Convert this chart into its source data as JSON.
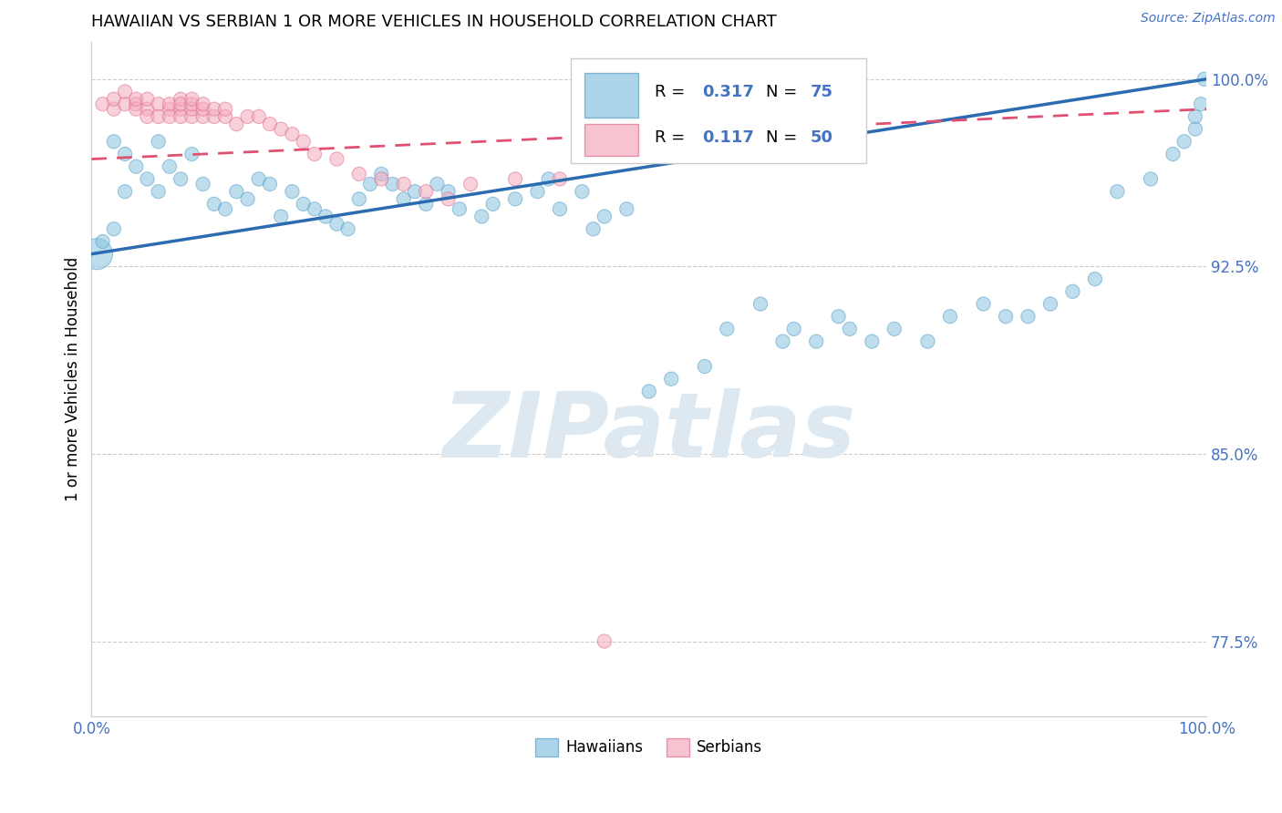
{
  "title": "HAWAIIAN VS SERBIAN 1 OR MORE VEHICLES IN HOUSEHOLD CORRELATION CHART",
  "source_text": "Source: ZipAtlas.com",
  "ylabel": "1 or more Vehicles in Household",
  "xlim": [
    0.0,
    1.0
  ],
  "ylim": [
    0.745,
    1.015
  ],
  "yticks": [
    0.775,
    0.85,
    0.925,
    1.0
  ],
  "ytick_labels": [
    "77.5%",
    "85.0%",
    "92.5%",
    "100.0%"
  ],
  "xtick_labels": [
    "0.0%",
    "100.0%"
  ],
  "blue_color": "#89c4e1",
  "blue_edge_color": "#5b9fc7",
  "pink_color": "#f4aabc",
  "pink_edge_color": "#e07090",
  "blue_line_color": "#2b6cb0",
  "pink_line_color": "#e05070",
  "watermark_text": "ZIPatlas",
  "watermark_color": "#dde8f0",
  "background_color": "#ffffff",
  "tick_color": "#4472c4",
  "hawaiians_x": [
    0.005,
    0.01,
    0.02,
    0.02,
    0.03,
    0.03,
    0.04,
    0.05,
    0.06,
    0.06,
    0.07,
    0.08,
    0.09,
    0.1,
    0.11,
    0.12,
    0.13,
    0.14,
    0.15,
    0.16,
    0.17,
    0.18,
    0.19,
    0.2,
    0.21,
    0.22,
    0.23,
    0.24,
    0.25,
    0.26,
    0.27,
    0.28,
    0.29,
    0.3,
    0.31,
    0.32,
    0.33,
    0.35,
    0.36,
    0.38,
    0.4,
    0.41,
    0.42,
    0.44,
    0.45,
    0.46,
    0.48,
    0.5,
    0.52,
    0.55,
    0.57,
    0.6,
    0.62,
    0.63,
    0.65,
    0.67,
    0.68,
    0.7,
    0.72,
    0.75,
    0.77,
    0.8,
    0.82,
    0.84,
    0.86,
    0.88,
    0.9,
    0.92,
    0.95,
    0.97,
    0.98,
    0.99,
    0.99,
    0.995,
    0.998
  ],
  "hawaiians_y": [
    0.93,
    0.935,
    0.94,
    0.975,
    0.955,
    0.97,
    0.965,
    0.96,
    0.955,
    0.975,
    0.965,
    0.96,
    0.97,
    0.958,
    0.95,
    0.948,
    0.955,
    0.952,
    0.96,
    0.958,
    0.945,
    0.955,
    0.95,
    0.948,
    0.945,
    0.942,
    0.94,
    0.952,
    0.958,
    0.962,
    0.958,
    0.952,
    0.955,
    0.95,
    0.958,
    0.955,
    0.948,
    0.945,
    0.95,
    0.952,
    0.955,
    0.96,
    0.948,
    0.955,
    0.94,
    0.945,
    0.948,
    0.875,
    0.88,
    0.885,
    0.9,
    0.91,
    0.895,
    0.9,
    0.895,
    0.905,
    0.9,
    0.895,
    0.9,
    0.895,
    0.905,
    0.91,
    0.905,
    0.905,
    0.91,
    0.915,
    0.92,
    0.955,
    0.96,
    0.97,
    0.975,
    0.98,
    0.985,
    0.99,
    1.0
  ],
  "hawaiians_large": [
    0
  ],
  "serbians_x": [
    0.01,
    0.02,
    0.02,
    0.03,
    0.03,
    0.04,
    0.04,
    0.04,
    0.05,
    0.05,
    0.05,
    0.06,
    0.06,
    0.07,
    0.07,
    0.07,
    0.08,
    0.08,
    0.08,
    0.08,
    0.09,
    0.09,
    0.09,
    0.09,
    0.1,
    0.1,
    0.1,
    0.11,
    0.11,
    0.12,
    0.12,
    0.13,
    0.14,
    0.15,
    0.16,
    0.17,
    0.18,
    0.19,
    0.2,
    0.22,
    0.24,
    0.26,
    0.28,
    0.3,
    0.32,
    0.34,
    0.38,
    0.42,
    0.46,
    0.5
  ],
  "serbians_y": [
    0.99,
    0.988,
    0.992,
    0.99,
    0.995,
    0.99,
    0.988,
    0.992,
    0.988,
    0.992,
    0.985,
    0.99,
    0.985,
    0.988,
    0.99,
    0.985,
    0.988,
    0.992,
    0.985,
    0.99,
    0.985,
    0.988,
    0.99,
    0.992,
    0.985,
    0.988,
    0.99,
    0.985,
    0.988,
    0.985,
    0.988,
    0.982,
    0.985,
    0.985,
    0.982,
    0.98,
    0.978,
    0.975,
    0.97,
    0.968,
    0.962,
    0.96,
    0.958,
    0.955,
    0.952,
    0.958,
    0.96,
    0.96,
    0.775,
    0.97
  ],
  "blue_line_x0": 0.0,
  "blue_line_x1": 1.0,
  "blue_line_y0": 0.93,
  "blue_line_y1": 1.0,
  "pink_line_x0": 0.0,
  "pink_line_x1": 1.0,
  "pink_line_y0": 0.968,
  "pink_line_y1": 0.988
}
